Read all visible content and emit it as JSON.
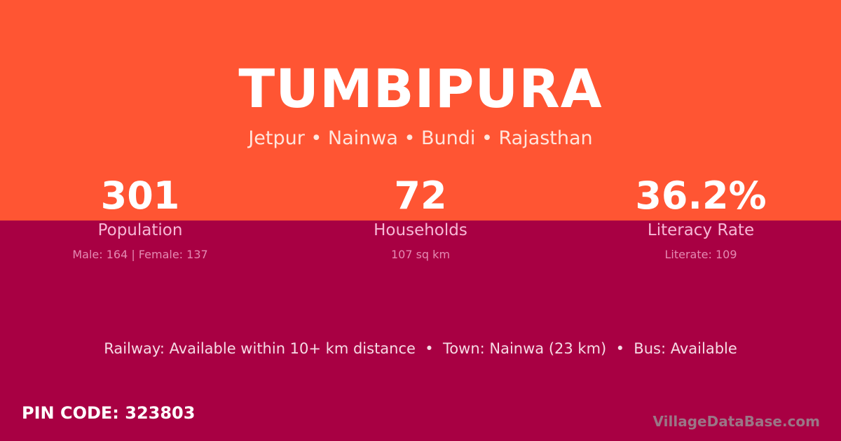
{
  "title": "TUMBIPURA",
  "subtitle": "Jetpur • Nainwa • Bundi • Rajasthan",
  "colors": {
    "top": "#ff5533",
    "bottom": "#a80043"
  },
  "stats": [
    {
      "value": "301",
      "label": "Population",
      "detail": "Male: 164 | Female: 137"
    },
    {
      "value": "72",
      "label": "Households",
      "detail": "107 sq km"
    },
    {
      "value": "36.2%",
      "label": "Literacy Rate",
      "detail": "Literate: 109"
    }
  ],
  "info": "Railway: Available within 10+ km distance  •  Town: Nainwa (23 km)  •  Bus: Available",
  "pin": "PIN CODE: 323803",
  "brand": "VillageDataBase.com"
}
